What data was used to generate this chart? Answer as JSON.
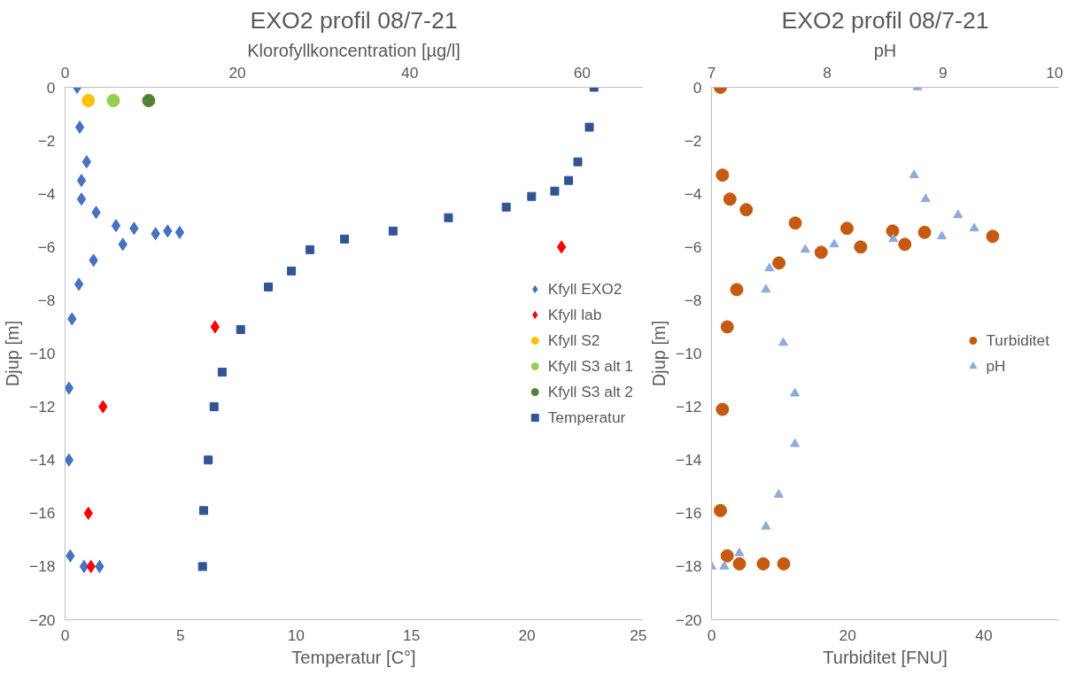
{
  "chart_data": [
    {
      "type": "scatter",
      "title": "EXO2 profil 08/7-21",
      "xlabel": "Temperatur [C°]",
      "x2label": "Klorofyllkoncentration [µg/l]",
      "ylabel": "Djup [m]",
      "xlim": [
        0,
        25
      ],
      "xticks": [
        0,
        5,
        10,
        15,
        20,
        25
      ],
      "x2lim": [
        0,
        67
      ],
      "x2ticks": [
        0,
        20,
        40,
        60
      ],
      "ylim": [
        -20,
        0
      ],
      "yticks": [
        0,
        -2,
        -4,
        -6,
        -8,
        -10,
        -12,
        -14,
        -16,
        -18,
        -20
      ],
      "grid": false,
      "legend": "right",
      "series": [
        {
          "name": "Kfyll EXO2",
          "color": "#4472c4",
          "marker": "diamond",
          "axis": "x2",
          "x": [
            1.4,
            1.7,
            2.5,
            1.9,
            1.9,
            3.6,
            5.9,
            8.0,
            13.3,
            11.9,
            10.5,
            6.7,
            3.3,
            1.6,
            0.8,
            0.45,
            0.45,
            0.6,
            2.2,
            4.0
          ],
          "values": [
            0,
            -1.5,
            -2.8,
            -3.5,
            -4.2,
            -4.7,
            -5.2,
            -5.3,
            -5.45,
            -5.4,
            -5.5,
            -5.9,
            -6.5,
            -7.4,
            -8.7,
            -11.3,
            -14,
            -17.6,
            -18,
            -18
          ]
        },
        {
          "name": "Kfyll lab",
          "color": "#ff0000",
          "marker": "diamond",
          "axis": "x2",
          "x": [
            57.6,
            17.4,
            4.4,
            2.7,
            3.0
          ],
          "values": [
            -6,
            -9,
            -12,
            -16,
            -18
          ]
        },
        {
          "name": "Kfyll S2",
          "color": "#ffc000",
          "marker": "circle",
          "axis": "x2",
          "x": [
            2.7
          ],
          "values": [
            -0.5
          ]
        },
        {
          "name": "Kfyll S3 alt 1",
          "color": "#92d050",
          "marker": "circle",
          "axis": "x2",
          "x": [
            5.6
          ],
          "values": [
            -0.5
          ]
        },
        {
          "name": "Kfyll S3 alt 2",
          "color": "#548235",
          "marker": "circle",
          "axis": "x2",
          "x": [
            9.7
          ],
          "values": [
            -0.5
          ]
        },
        {
          "name": "Temperatur",
          "color": "#2f5597",
          "marker": "square",
          "x": [
            22.9,
            22.7,
            22.2,
            21.8,
            21.2,
            20.2,
            19.1,
            16.6,
            14.2,
            12.1,
            10.6,
            9.8,
            8.8,
            7.6,
            6.8,
            6.45,
            6.2,
            6.0,
            5.95
          ],
          "values": [
            0,
            -1.5,
            -2.8,
            -3.5,
            -3.9,
            -4.1,
            -4.5,
            -4.9,
            -5.4,
            -5.7,
            -6.1,
            -6.9,
            -7.5,
            -9.1,
            -10.7,
            -12,
            -14,
            -15.9,
            -18
          ]
        }
      ]
    },
    {
      "type": "scatter",
      "title": "EXO2 profil 08/7-21",
      "xlabel": "Turbiditet [FNU]",
      "x2label": "pH",
      "ylabel": "Djup [m]",
      "xlim": [
        0,
        51
      ],
      "xticks": [
        0,
        20,
        40
      ],
      "x2lim": [
        7,
        10
      ],
      "x2ticks": [
        7,
        8,
        9,
        10
      ],
      "ylim": [
        -20,
        0
      ],
      "yticks": [
        0,
        -2,
        -4,
        -6,
        -8,
        -10,
        -12,
        -14,
        -16,
        -18,
        -20
      ],
      "grid": false,
      "legend": "right",
      "series": [
        {
          "name": "Turbiditet",
          "color": "#c55a11",
          "marker": "circle",
          "x": [
            1.3,
            1.6,
            2.7,
            5.1,
            12.3,
            19.9,
            26.6,
            31.3,
            41.3,
            28.4,
            21.9,
            16.1,
            9.9,
            3.7,
            2.3,
            1.6,
            1.3,
            2.3,
            4.1,
            7.6,
            10.6
          ],
          "values": [
            0,
            -3.3,
            -4.2,
            -4.6,
            -5.1,
            -5.3,
            -5.4,
            -5.45,
            -5.6,
            -5.9,
            -6.0,
            -6.2,
            -6.6,
            -7.6,
            -9.0,
            -12.1,
            -15.9,
            -17.6,
            -17.9,
            -17.9,
            -17.9
          ]
        },
        {
          "name": "pH",
          "color": "#8faadc",
          "marker": "triangle",
          "axis": "x2",
          "x": [
            8.78,
            8.75,
            8.85,
            9.13,
            9.27,
            8.99,
            8.57,
            8.06,
            7.81,
            7.5,
            7.47,
            7.62,
            7.72,
            7.72,
            7.58,
            7.47,
            7.24,
            7.11,
            7.0
          ],
          "values": [
            0,
            -3.3,
            -4.2,
            -4.8,
            -5.3,
            -5.6,
            -5.7,
            -5.9,
            -6.1,
            -6.8,
            -7.6,
            -9.6,
            -11.5,
            -13.4,
            -15.3,
            -16.5,
            -17.5,
            -18,
            -18
          ]
        }
      ]
    }
  ]
}
